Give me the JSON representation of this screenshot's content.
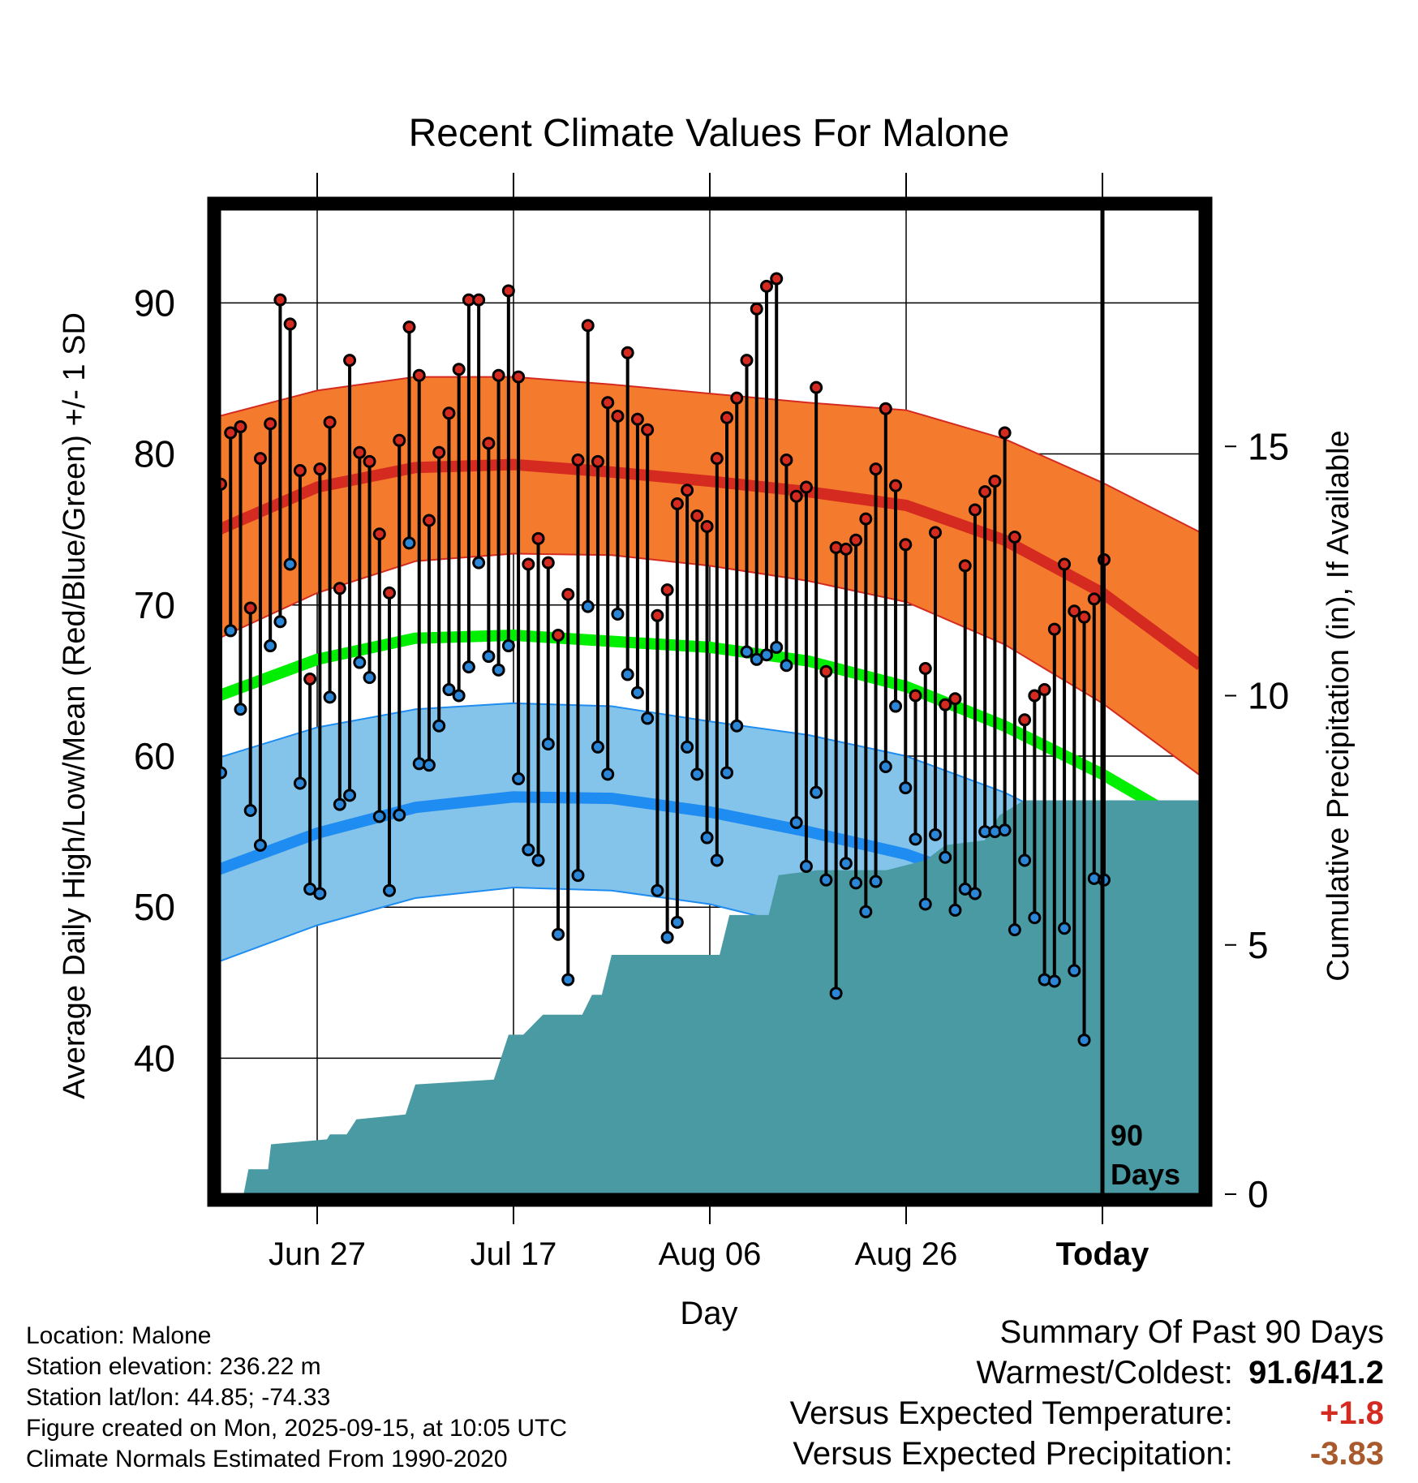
{
  "chart_data": {
    "type": "line",
    "title": "Recent Climate Values For Malone",
    "xlabel": "Day",
    "ylabel": "Average Daily High/Low/Mean (Red/Blue/Green) +/- 1 SD",
    "y2label": "Cumulative Precipitation (in), If Available",
    "ylim": [
      31,
      97
    ],
    "y2lim": [
      0,
      20
    ],
    "xlim": [
      0,
      100
    ],
    "yticks": [
      40,
      50,
      60,
      70,
      80,
      90
    ],
    "y2ticks": [
      0,
      5,
      10,
      15
    ],
    "xtick_positions": [
      10,
      30,
      50,
      70,
      90
    ],
    "xtick_labels": [
      "Jun 27",
      "Jul 17",
      "Aug 06",
      "Aug 26",
      "Today"
    ],
    "today_index": 90,
    "today_label_line1": "90",
    "today_label_line2": "Days",
    "colors": {
      "high_band": "#f47b2d",
      "high_line": "#d42a20",
      "low_band": "#84c3ea",
      "low_line": "#1e8cf0",
      "mean_line": "#00ee00",
      "precip": "#4a9aa3",
      "high_dot": "#d42a20",
      "low_dot": "#2b86d8"
    },
    "normal_high": [
      {
        "x": 0,
        "mean": 75.0,
        "upper": 82.5,
        "lower": 67.8
      },
      {
        "x": 10,
        "mean": 77.8,
        "upper": 84.2,
        "lower": 70.8
      },
      {
        "x": 20,
        "mean": 79.1,
        "upper": 85.1,
        "lower": 72.9
      },
      {
        "x": 30,
        "mean": 79.3,
        "upper": 85.1,
        "lower": 73.4
      },
      {
        "x": 40,
        "mean": 78.8,
        "upper": 84.6,
        "lower": 73.3
      },
      {
        "x": 50,
        "mean": 78.2,
        "upper": 84.0,
        "lower": 72.6
      },
      {
        "x": 60,
        "mean": 77.5,
        "upper": 83.4,
        "lower": 71.6
      },
      {
        "x": 70,
        "mean": 76.6,
        "upper": 82.9,
        "lower": 70.2
      },
      {
        "x": 80,
        "mean": 74.3,
        "upper": 81.0,
        "lower": 67.4
      },
      {
        "x": 90,
        "mean": 70.8,
        "upper": 78.1,
        "lower": 63.5
      },
      {
        "x": 100,
        "mean": 66.0,
        "upper": 74.8,
        "lower": 58.7
      }
    ],
    "normal_low": [
      {
        "x": 0,
        "mean": 52.5,
        "upper": 59.9,
        "lower": 46.4
      },
      {
        "x": 10,
        "mean": 54.9,
        "upper": 61.9,
        "lower": 48.8
      },
      {
        "x": 20,
        "mean": 56.6,
        "upper": 63.1,
        "lower": 50.6
      },
      {
        "x": 30,
        "mean": 57.3,
        "upper": 63.5,
        "lower": 51.3
      },
      {
        "x": 40,
        "mean": 57.2,
        "upper": 63.3,
        "lower": 51.1
      },
      {
        "x": 50,
        "mean": 56.3,
        "upper": 62.3,
        "lower": 50.2
      },
      {
        "x": 60,
        "mean": 55.0,
        "upper": 61.4,
        "lower": 48.6
      },
      {
        "x": 70,
        "mean": 53.5,
        "upper": 60.0,
        "lower": 46.5
      },
      {
        "x": 80,
        "mean": 51.2,
        "upper": 57.6,
        "lower": 43.8
      },
      {
        "x": 90,
        "mean": 47.0,
        "upper": 54.4,
        "lower": 40.5
      },
      {
        "x": 100,
        "mean": 43.5,
        "upper": 52.2,
        "lower": 37.0
      }
    ],
    "normal_mean": [
      {
        "x": 0,
        "y": 64.0
      },
      {
        "x": 10,
        "y": 66.4
      },
      {
        "x": 20,
        "y": 67.8
      },
      {
        "x": 30,
        "y": 68.0
      },
      {
        "x": 40,
        "y": 67.6
      },
      {
        "x": 50,
        "y": 67.2
      },
      {
        "x": 60,
        "y": 66.3
      },
      {
        "x": 70,
        "y": 64.6
      },
      {
        "x": 80,
        "y": 62.0
      },
      {
        "x": 90,
        "y": 58.8
      },
      {
        "x": 100,
        "y": 55.0
      }
    ],
    "daily_high": [
      78.0,
      81.4,
      81.8,
      69.8,
      79.7,
      82.0,
      90.2,
      88.6,
      78.9,
      65.1,
      79.0,
      82.1,
      71.1,
      86.2,
      80.1,
      79.5,
      74.7,
      70.8,
      80.9,
      88.4,
      85.2,
      75.6,
      80.1,
      82.7,
      85.6,
      90.2,
      90.2,
      80.7,
      85.2,
      90.8,
      85.1,
      72.7,
      74.4,
      72.8,
      68.0,
      70.7,
      79.6,
      88.5,
      79.5,
      83.4,
      82.5,
      86.7,
      82.3,
      81.6,
      69.3,
      71.0,
      76.7,
      77.6,
      75.9,
      75.2,
      79.7,
      82.4,
      83.7,
      86.2,
      89.6,
      91.1,
      91.6,
      79.6,
      77.2,
      77.8,
      84.4,
      65.6,
      73.8,
      73.7,
      74.3,
      75.7,
      79.0,
      83.0,
      77.9,
      74.0,
      64.0,
      65.8,
      74.8,
      63.4,
      63.8,
      72.6,
      76.3,
      77.5,
      78.2,
      81.4,
      74.5,
      62.4,
      64.0,
      64.4,
      68.4,
      72.7,
      69.6,
      69.2,
      70.4,
      73.0
    ],
    "daily_low": [
      58.9,
      68.3,
      63.1,
      56.4,
      54.1,
      67.3,
      68.9,
      72.7,
      58.2,
      51.2,
      50.9,
      63.9,
      56.8,
      57.4,
      66.2,
      65.2,
      56.0,
      51.1,
      56.1,
      74.1,
      59.5,
      59.4,
      62.0,
      64.4,
      64.0,
      65.9,
      72.8,
      66.6,
      65.7,
      67.3,
      58.5,
      53.8,
      53.1,
      60.8,
      48.2,
      45.2,
      52.1,
      69.9,
      60.6,
      58.8,
      69.4,
      65.4,
      64.2,
      62.5,
      51.1,
      48.0,
      49.0,
      60.6,
      58.8,
      54.6,
      53.1,
      58.9,
      62.0,
      66.9,
      66.4,
      66.7,
      67.2,
      66.0,
      55.6,
      52.7,
      57.6,
      51.8,
      44.3,
      52.9,
      51.6,
      49.7,
      51.7,
      59.3,
      63.3,
      57.9,
      54.5,
      50.2,
      54.8,
      53.3,
      49.8,
      51.2,
      50.9,
      55.0,
      55.0,
      55.1,
      48.5,
      53.1,
      49.3,
      45.2,
      45.1,
      48.6,
      45.8,
      41.2,
      51.9,
      51.8
    ],
    "cumulative_precip": [
      {
        "x": 2.5,
        "y": 0.0
      },
      {
        "x": 3.0,
        "y": 0.5
      },
      {
        "x": 5.0,
        "y": 0.5
      },
      {
        "x": 5.3,
        "y": 1.0
      },
      {
        "x": 11.0,
        "y": 1.1
      },
      {
        "x": 11.3,
        "y": 1.2
      },
      {
        "x": 13.0,
        "y": 1.2
      },
      {
        "x": 14.0,
        "y": 1.5
      },
      {
        "x": 19.0,
        "y": 1.6
      },
      {
        "x": 20.0,
        "y": 2.2
      },
      {
        "x": 28.0,
        "y": 2.3
      },
      {
        "x": 29.5,
        "y": 3.2
      },
      {
        "x": 31.0,
        "y": 3.2
      },
      {
        "x": 33.0,
        "y": 3.6
      },
      {
        "x": 37.0,
        "y": 3.6
      },
      {
        "x": 38.0,
        "y": 4.0
      },
      {
        "x": 39.0,
        "y": 4.0
      },
      {
        "x": 40.0,
        "y": 4.8
      },
      {
        "x": 51.0,
        "y": 4.8
      },
      {
        "x": 52.0,
        "y": 5.6
      },
      {
        "x": 56.0,
        "y": 5.6
      },
      {
        "x": 57.0,
        "y": 6.4
      },
      {
        "x": 61.0,
        "y": 6.5
      },
      {
        "x": 68.0,
        "y": 6.5
      },
      {
        "x": 72.0,
        "y": 6.7
      },
      {
        "x": 74.0,
        "y": 7.0
      },
      {
        "x": 78.0,
        "y": 7.1
      },
      {
        "x": 79.5,
        "y": 7.6
      },
      {
        "x": 82.0,
        "y": 7.9
      },
      {
        "x": 100.0,
        "y": 7.9
      }
    ]
  },
  "info": {
    "location": "Location: Malone",
    "elevation": "Station elevation: 236.22 m",
    "latlon": "Station lat/lon: 44.85; -74.33",
    "created": "Figure created on Mon, 2025-09-15, at 10:05 UTC",
    "normals": "Climate Normals Estimated From 1990-2020"
  },
  "summary": {
    "title": "Summary Of Past 90 Days",
    "warmest_label": "Warmest/Coldest:",
    "warmest_value": "91.6/41.2",
    "temp_label": "Versus Expected Temperature:",
    "temp_value": "+1.8",
    "temp_color": "#d42a20",
    "precip_label": "Versus Expected Precipitation:",
    "precip_value": "-3.83",
    "precip_color": "#a85a2c"
  }
}
